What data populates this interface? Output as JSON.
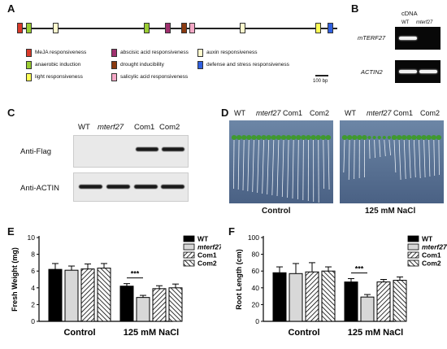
{
  "panels": {
    "a": "A",
    "b": "B",
    "c": "C",
    "d": "D",
    "e": "E",
    "f": "F"
  },
  "promoter": {
    "elements": [
      {
        "pos": 1.5,
        "color": "#d93a2a"
      },
      {
        "pos": 13,
        "color": "#9acd32"
      },
      {
        "pos": 46,
        "color": "#fffacd"
      },
      {
        "pos": 158,
        "color": "#9acd32"
      },
      {
        "pos": 184,
        "color": "#a0306e"
      },
      {
        "pos": 204,
        "color": "#8b3a10"
      },
      {
        "pos": 214,
        "color": "#f4a8c6"
      },
      {
        "pos": 276,
        "color": "#fffacd"
      },
      {
        "pos": 369,
        "color": "#ffff55"
      },
      {
        "pos": 384,
        "color": "#3060e0"
      }
    ],
    "legend": [
      {
        "label": "MeJA responsiveness",
        "color": "#d93a2a"
      },
      {
        "label": "abscisic acid responsiveness",
        "color": "#a0306e"
      },
      {
        "label": "auxin responsiveness",
        "color": "#fffacd"
      },
      {
        "label": "anaerobic induction",
        "color": "#9acd32"
      },
      {
        "label": "drought inducibility",
        "color": "#8b3a10"
      },
      {
        "label": "defense and stress responsiveness",
        "color": "#3060e0"
      },
      {
        "label": "light responsiveness",
        "color": "#ffff55"
      },
      {
        "label": "salicylic acid responsiveness",
        "color": "#f4a8c6"
      }
    ],
    "scale": "100 bp"
  },
  "rtpcr": {
    "header": "cDNA",
    "lanes": [
      "WT",
      "mterf27"
    ],
    "rows": [
      "mTERF27",
      "ACTIN2"
    ]
  },
  "western": {
    "lanes": [
      "WT",
      "mterf27",
      "Com1",
      "Com2"
    ],
    "rows": [
      "Anti-Flag",
      "Anti-ACTIN"
    ]
  },
  "plates": {
    "lanes": [
      "WT",
      "mterf27",
      "Com1",
      "Com2"
    ],
    "conditions": [
      "Control",
      "125 mM NaCl"
    ]
  },
  "fig_e": {
    "chart_data": {
      "type": "bar",
      "categories": [
        "Control",
        "125 mM NaCl"
      ],
      "ylabel": "Fresh Weight (mg)",
      "ylim": [
        0,
        10
      ],
      "yticks": [
        "0",
        "2",
        "4",
        "6",
        "8",
        "10"
      ],
      "series": [
        {
          "name": "WT",
          "values": [
            6.2,
            4.2
          ],
          "errors": [
            0.7,
            0.3
          ]
        },
        {
          "name": "mterf27",
          "values": [
            6.1,
            2.85
          ],
          "errors": [
            0.5,
            0.25
          ]
        },
        {
          "name": "Com1",
          "values": [
            6.25,
            3.9
          ],
          "errors": [
            0.6,
            0.35
          ]
        },
        {
          "name": "Com2",
          "values": [
            6.35,
            4.0
          ],
          "errors": [
            0.55,
            0.45
          ]
        }
      ],
      "significance": "***"
    }
  },
  "fig_f": {
    "chart_data": {
      "type": "bar",
      "categories": [
        "Control",
        "125 mM NaCl"
      ],
      "ylabel": "Root Length (cm)",
      "ylim": [
        0,
        100
      ],
      "yticks": [
        "0",
        "20",
        "40",
        "60",
        "80",
        "100"
      ],
      "series": [
        {
          "name": "WT",
          "values": [
            58,
            47
          ],
          "errors": [
            7,
            4
          ]
        },
        {
          "name": "mterf27",
          "values": [
            57,
            29
          ],
          "errors": [
            12,
            3
          ]
        },
        {
          "name": "Com1",
          "values": [
            59,
            47
          ],
          "errors": [
            11,
            3
          ]
        },
        {
          "name": "Com2",
          "values": [
            60,
            49
          ],
          "errors": [
            5,
            4
          ]
        }
      ],
      "significance": "***"
    }
  }
}
